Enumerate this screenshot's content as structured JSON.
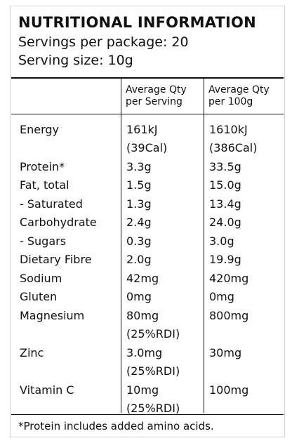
{
  "panel": {
    "title": "NUTRITIONAL INFORMATION",
    "servings_per_package": "Servings per package: 20",
    "serving_size": "Serving size: 10g",
    "columns": {
      "per_serving": [
        "Average Qty",
        "per Serving"
      ],
      "per_100g": [
        "Average Qty",
        "per 100g"
      ]
    },
    "rows": [
      {
        "label": "Energy",
        "serving": "161kJ",
        "per100": "1610kJ"
      },
      {
        "label": "",
        "serving": "(39Cal)",
        "per100": "(386Cal)"
      },
      {
        "label": "Protein*",
        "serving": "3.3g",
        "per100": "33.5g"
      },
      {
        "label": "Fat, total",
        "serving": "1.5g",
        "per100": "15.0g"
      },
      {
        "label": "- Saturated",
        "serving": "1.3g",
        "per100": "13.4g"
      },
      {
        "label": "Carbohydrate",
        "serving": "2.4g",
        "per100": "24.0g"
      },
      {
        "label": "- Sugars",
        "serving": "0.3g",
        "per100": "3.0g"
      },
      {
        "label": "Dietary Fibre",
        "serving": "2.0g",
        "per100": "19.9g"
      },
      {
        "label": "Sodium",
        "serving": "42mg",
        "per100": "420mg"
      },
      {
        "label": "Gluten",
        "serving": "0mg",
        "per100": "0mg"
      },
      {
        "label": "Magnesium",
        "serving": "80mg",
        "per100": "800mg"
      },
      {
        "label": "",
        "serving": "(25%RDI)",
        "per100": ""
      },
      {
        "label": "Zinc",
        "serving": "3.0mg",
        "per100": "30mg"
      },
      {
        "label": "",
        "serving": "(25%RDI)",
        "per100": ""
      },
      {
        "label": "Vitamin C",
        "serving": "10mg",
        "per100": "100mg"
      },
      {
        "label": "",
        "serving": "(25%RDI)",
        "per100": ""
      }
    ],
    "footnote": "*Protein includes added amino acids."
  }
}
